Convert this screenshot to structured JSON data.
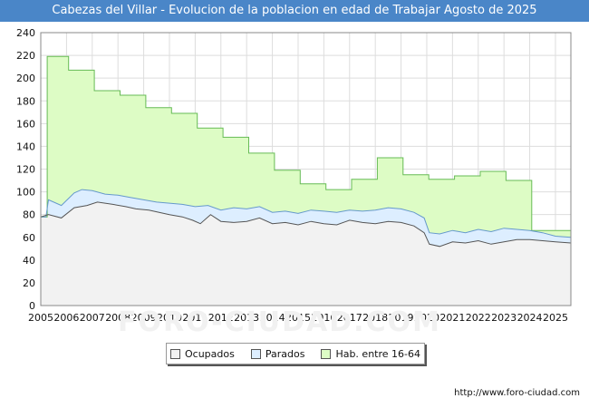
{
  "title": "Cabezas del Villar - Evolucion de la poblacion en edad de Trabajar Agosto de 2025",
  "source_url": "http://www.foro-ciudad.com",
  "watermark": "FORO-CIUDAD.COM",
  "colors": {
    "title_bg": "#4a86c8",
    "hab_fill": "#ddfcc5",
    "hab_line": "#66bb55",
    "parados_fill": "#ddeeff",
    "parados_line": "#6699cc",
    "ocupados_fill": "#f2f2f2",
    "ocupados_line": "#555555"
  },
  "legend": [
    {
      "name": "Ocupados",
      "swatch": "#f2f2f2"
    },
    {
      "name": "Parados",
      "swatch": "#ddeeff"
    },
    {
      "name": "Hab. entre 16-64",
      "swatch": "#ddfcc5"
    }
  ],
  "chart_data": {
    "type": "area",
    "title": "Cabezas del Villar - Evolucion de la poblacion en edad de Trabajar Agosto de 2025",
    "xlabel": "",
    "ylabel": "",
    "xlim": [
      2005,
      2025.6
    ],
    "ylim": [
      0,
      240
    ],
    "yticks": [
      0,
      20,
      40,
      60,
      80,
      100,
      120,
      140,
      160,
      180,
      200,
      220,
      240
    ],
    "xticks": [
      2005,
      2006,
      2007,
      2008,
      2009,
      2010,
      2011,
      2012,
      2013,
      2014,
      2015,
      2016,
      2017,
      2018,
      2019,
      2020,
      2021,
      2022,
      2023,
      2024,
      2025
    ],
    "grid": true,
    "series": [
      {
        "name": "Hab. entre 16-64",
        "step": true,
        "points": [
          [
            2005,
            78
          ],
          [
            2005.25,
            219
          ],
          [
            2006.08,
            207
          ],
          [
            2007.08,
            189
          ],
          [
            2008.08,
            185
          ],
          [
            2009.08,
            174
          ],
          [
            2010.08,
            169
          ],
          [
            2011.08,
            156
          ],
          [
            2012.08,
            148
          ],
          [
            2013.08,
            134
          ],
          [
            2014.08,
            119
          ],
          [
            2015.08,
            107
          ],
          [
            2016.08,
            102
          ],
          [
            2017.08,
            111
          ],
          [
            2018.08,
            130
          ],
          [
            2019.08,
            115
          ],
          [
            2020.08,
            111
          ],
          [
            2021.08,
            114
          ],
          [
            2022.08,
            118
          ],
          [
            2023.08,
            110
          ],
          [
            2024.08,
            66
          ],
          [
            2025.6,
            66
          ]
        ]
      },
      {
        "name": "Parados",
        "points": [
          [
            2005,
            78
          ],
          [
            2005.2,
            78
          ],
          [
            2005.3,
            93
          ],
          [
            2005.8,
            88
          ],
          [
            2006.3,
            99
          ],
          [
            2006.6,
            102
          ],
          [
            2007,
            101
          ],
          [
            2007.5,
            98
          ],
          [
            2008,
            97
          ],
          [
            2008.5,
            95
          ],
          [
            2009,
            93
          ],
          [
            2009.5,
            91
          ],
          [
            2010,
            90
          ],
          [
            2010.5,
            89
          ],
          [
            2011,
            87
          ],
          [
            2011.5,
            88
          ],
          [
            2012,
            84
          ],
          [
            2012.5,
            86
          ],
          [
            2013,
            85
          ],
          [
            2013.5,
            87
          ],
          [
            2014,
            82
          ],
          [
            2014.5,
            83
          ],
          [
            2015,
            81
          ],
          [
            2015.5,
            84
          ],
          [
            2016,
            83
          ],
          [
            2016.5,
            82
          ],
          [
            2017,
            84
          ],
          [
            2017.5,
            83
          ],
          [
            2018,
            84
          ],
          [
            2018.5,
            86
          ],
          [
            2019,
            85
          ],
          [
            2019.5,
            82
          ],
          [
            2019.9,
            77
          ],
          [
            2020.1,
            64
          ],
          [
            2020.5,
            63
          ],
          [
            2021,
            66
          ],
          [
            2021.5,
            64
          ],
          [
            2022,
            67
          ],
          [
            2022.5,
            65
          ],
          [
            2023,
            68
          ],
          [
            2023.5,
            67
          ],
          [
            2024,
            66
          ],
          [
            2024.5,
            64
          ],
          [
            2025,
            61
          ],
          [
            2025.6,
            60
          ]
        ]
      },
      {
        "name": "Ocupados",
        "points": [
          [
            2005,
            78
          ],
          [
            2005.3,
            80
          ],
          [
            2005.8,
            77
          ],
          [
            2006.3,
            86
          ],
          [
            2006.8,
            88
          ],
          [
            2007.2,
            91
          ],
          [
            2007.8,
            89
          ],
          [
            2008.3,
            87
          ],
          [
            2008.7,
            85
          ],
          [
            2009.2,
            84
          ],
          [
            2009.6,
            82
          ],
          [
            2010,
            80
          ],
          [
            2010.5,
            78
          ],
          [
            2010.9,
            75
          ],
          [
            2011.2,
            72
          ],
          [
            2011.6,
            80
          ],
          [
            2012,
            74
          ],
          [
            2012.5,
            73
          ],
          [
            2013,
            74
          ],
          [
            2013.5,
            77
          ],
          [
            2014,
            72
          ],
          [
            2014.5,
            73
          ],
          [
            2015,
            71
          ],
          [
            2015.5,
            74
          ],
          [
            2016,
            72
          ],
          [
            2016.5,
            71
          ],
          [
            2017,
            75
          ],
          [
            2017.5,
            73
          ],
          [
            2018,
            72
          ],
          [
            2018.5,
            74
          ],
          [
            2019,
            73
          ],
          [
            2019.5,
            70
          ],
          [
            2019.9,
            64
          ],
          [
            2020.1,
            54
          ],
          [
            2020.5,
            52
          ],
          [
            2021,
            56
          ],
          [
            2021.5,
            55
          ],
          [
            2022,
            57
          ],
          [
            2022.5,
            54
          ],
          [
            2023,
            56
          ],
          [
            2023.5,
            58
          ],
          [
            2024,
            58
          ],
          [
            2024.5,
            57
          ],
          [
            2025,
            56
          ],
          [
            2025.6,
            55
          ]
        ]
      }
    ]
  }
}
